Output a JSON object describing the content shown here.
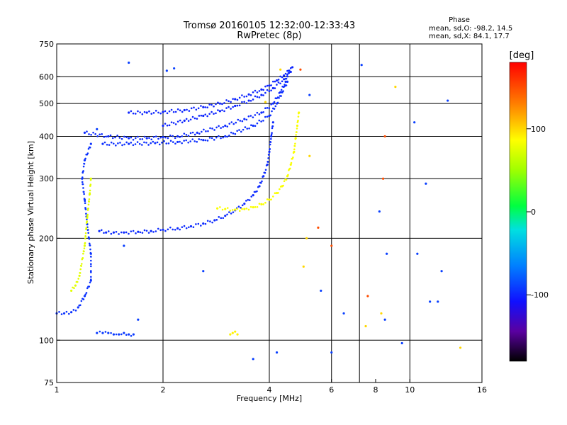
{
  "chart_data": {
    "type": "scatter",
    "title": "Tromsø 20160105 12:32:00-12:33:43",
    "subtitle": "RwPretec (8p)",
    "xlabel": "Frequency [MHz]",
    "ylabel": "Stationary phase Virtual Height [km]",
    "x_scale": "log",
    "y_scale": "log",
    "xlim": [
      1,
      16
    ],
    "ylim": [
      75,
      750
    ],
    "x_ticks": [
      1,
      2,
      4,
      6,
      8,
      10,
      16
    ],
    "x_tick_labels": [
      "1",
      "2",
      "4",
      "6",
      "8",
      "10",
      "16"
    ],
    "x_gridlines": [
      2,
      4,
      6,
      7.2,
      10
    ],
    "y_ticks": [
      75,
      100,
      200,
      300,
      400,
      500,
      600,
      750
    ],
    "y_tick_labels": [
      "75",
      "100",
      "200",
      "300",
      "400",
      "500",
      "600",
      "750"
    ],
    "y_gridlines": [
      100,
      200,
      300,
      400,
      500,
      600
    ],
    "grid": true,
    "stats": {
      "heading": "Phase",
      "line_o": "mean, sd,O: -98.2, 14.5",
      "line_x": "mean, sd,X:  84.1, 17.7"
    },
    "colorbar": {
      "unit_label": "[deg]",
      "tick_labels": [
        "100",
        "0",
        "-100"
      ],
      "tick_values": [
        100,
        0,
        -100
      ],
      "range": [
        -180,
        180
      ]
    },
    "series": [
      {
        "trace": "o-lower",
        "phase": -98,
        "points": [
          [
            1.32,
            210
          ],
          [
            1.38,
            208
          ],
          [
            1.45,
            208
          ],
          [
            1.55,
            208
          ],
          [
            1.7,
            209
          ],
          [
            1.85,
            210
          ],
          [
            2.0,
            212
          ],
          [
            2.2,
            214
          ],
          [
            2.4,
            217
          ],
          [
            2.6,
            221
          ],
          [
            2.8,
            226
          ],
          [
            3.0,
            233
          ],
          [
            3.2,
            242
          ],
          [
            3.4,
            253
          ],
          [
            3.6,
            268
          ],
          [
            3.75,
            285
          ],
          [
            3.85,
            305
          ],
          [
            3.95,
            330
          ],
          [
            4.0,
            360
          ],
          [
            4.05,
            400
          ],
          [
            4.1,
            440
          ]
        ]
      },
      {
        "trace": "x-lower",
        "phase": 84,
        "points": [
          [
            2.85,
            245
          ],
          [
            3.0,
            244
          ],
          [
            3.2,
            243
          ],
          [
            3.4,
            244
          ],
          [
            3.6,
            247
          ],
          [
            3.8,
            252
          ],
          [
            4.0,
            260
          ],
          [
            4.2,
            272
          ],
          [
            4.35,
            285
          ],
          [
            4.5,
            305
          ],
          [
            4.6,
            330
          ],
          [
            4.7,
            360
          ],
          [
            4.75,
            395
          ],
          [
            4.8,
            430
          ],
          [
            4.85,
            470
          ]
        ]
      },
      {
        "trace": "o-upper",
        "phase": -100,
        "points": [
          [
            1.6,
            470
          ],
          [
            1.8,
            470
          ],
          [
            2.0,
            472
          ],
          [
            2.3,
            478
          ],
          [
            2.6,
            488
          ],
          [
            2.9,
            500
          ],
          [
            3.2,
            515
          ],
          [
            3.5,
            532
          ],
          [
            3.8,
            550
          ],
          [
            4.0,
            565
          ],
          [
            4.2,
            585
          ],
          [
            4.4,
            605
          ],
          [
            4.55,
            625
          ],
          [
            4.65,
            640
          ]
        ]
      },
      {
        "trace": "o-upper-2",
        "phase": -100,
        "points": [
          [
            2.0,
            430
          ],
          [
            2.3,
            445
          ],
          [
            2.6,
            460
          ],
          [
            2.9,
            475
          ],
          [
            3.2,
            492
          ],
          [
            3.5,
            510
          ],
          [
            3.8,
            530
          ],
          [
            4.1,
            555
          ],
          [
            4.4,
            590
          ],
          [
            4.6,
            620
          ]
        ]
      },
      {
        "trace": "o-upper-3",
        "phase": -98,
        "points": [
          [
            1.2,
            410
          ],
          [
            1.4,
            400
          ],
          [
            1.6,
            395
          ],
          [
            1.8,
            395
          ],
          [
            2.0,
            398
          ],
          [
            2.2,
            400
          ],
          [
            2.5,
            410
          ],
          [
            3.0,
            430
          ],
          [
            3.4,
            450
          ],
          [
            3.8,
            470
          ],
          [
            4.1,
            500
          ],
          [
            4.3,
            540
          ],
          [
            4.45,
            580
          ],
          [
            4.55,
            625
          ]
        ]
      },
      {
        "trace": "o-upper-4",
        "phase": -96,
        "points": [
          [
            1.35,
            380
          ],
          [
            1.6,
            380
          ],
          [
            1.9,
            382
          ],
          [
            2.2,
            385
          ],
          [
            2.6,
            390
          ],
          [
            3.0,
            400
          ],
          [
            3.6,
            430
          ],
          [
            4.0,
            460
          ],
          [
            4.2,
            500
          ],
          [
            4.35,
            540
          ],
          [
            4.5,
            580
          ]
        ]
      },
      {
        "trace": "o-low-freq",
        "phase": -95,
        "points": [
          [
            1.0,
            120
          ],
          [
            1.05,
            120
          ],
          [
            1.1,
            121
          ],
          [
            1.15,
            125
          ],
          [
            1.2,
            135
          ],
          [
            1.25,
            150
          ],
          [
            1.25,
            180
          ],
          [
            1.22,
            220
          ],
          [
            1.2,
            260
          ],
          [
            1.18,
            300
          ],
          [
            1.2,
            340
          ],
          [
            1.25,
            380
          ]
        ]
      },
      {
        "trace": "x-low-freq",
        "phase": 75,
        "points": [
          [
            1.1,
            140
          ],
          [
            1.13,
            145
          ],
          [
            1.16,
            155
          ],
          [
            1.2,
            190
          ],
          [
            1.22,
            230
          ],
          [
            1.24,
            270
          ],
          [
            1.25,
            300
          ]
        ]
      },
      {
        "trace": "e-layer",
        "phase": -92,
        "points": [
          [
            1.3,
            105
          ],
          [
            1.35,
            105
          ],
          [
            1.4,
            105
          ],
          [
            1.45,
            104
          ],
          [
            1.5,
            104
          ],
          [
            1.55,
            105
          ],
          [
            1.6,
            104
          ],
          [
            1.65,
            104
          ]
        ]
      },
      {
        "trace": "x-e-layer",
        "phase": 90,
        "points": [
          [
            3.1,
            104
          ],
          [
            3.15,
            105
          ],
          [
            3.2,
            106
          ],
          [
            3.25,
            104
          ]
        ]
      },
      {
        "trace": "scatter",
        "phase": -90,
        "points": [
          [
            1.6,
            660
          ],
          [
            2.05,
            625
          ],
          [
            2.15,
            635
          ],
          [
            3.6,
            88
          ],
          [
            4.2,
            92
          ],
          [
            6.0,
            92
          ],
          [
            7.3,
            650
          ],
          [
            8.6,
            180
          ],
          [
            8.5,
            115
          ],
          [
            10.3,
            440
          ],
          [
            10.5,
            180
          ],
          [
            11.4,
            130
          ],
          [
            12.0,
            130
          ],
          [
            12.3,
            160
          ],
          [
            12.8,
            510
          ],
          [
            2.6,
            160
          ],
          [
            1.3,
            420
          ],
          [
            1.7,
            115
          ],
          [
            1.55,
            190
          ],
          [
            5.2,
            530
          ],
          [
            8.2,
            240
          ],
          [
            9.5,
            98
          ],
          [
            6.5,
            120
          ],
          [
            5.6,
            140
          ],
          [
            11.1,
            290
          ]
        ]
      },
      {
        "trace": "scatter-x",
        "phase": 100,
        "points": [
          [
            5.0,
            165
          ],
          [
            5.1,
            200
          ],
          [
            8.3,
            120
          ],
          [
            7.5,
            110
          ],
          [
            9.1,
            560
          ],
          [
            13.9,
            95
          ],
          [
            4.3,
            630
          ],
          [
            3.9,
            505
          ],
          [
            5.2,
            350
          ]
        ]
      },
      {
        "trace": "scatter-warm",
        "phase": 150,
        "points": [
          [
            4.9,
            630
          ],
          [
            7.6,
            135
          ],
          [
            8.5,
            400
          ],
          [
            8.4,
            300
          ],
          [
            6.0,
            190
          ],
          [
            5.5,
            215
          ]
        ]
      }
    ]
  }
}
